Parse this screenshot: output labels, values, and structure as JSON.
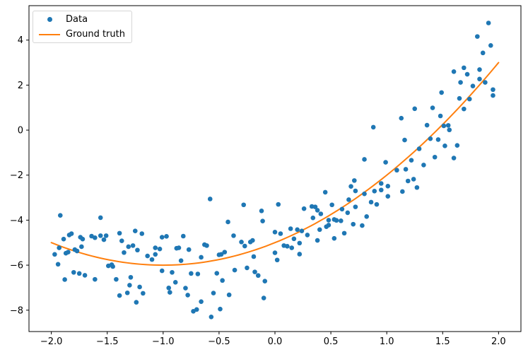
{
  "chart_data": {
    "type": "scatter",
    "title": "",
    "xlabel": "",
    "ylabel": "",
    "grid": false,
    "legend_position": "upper left",
    "xlim": [
      -2.2,
      2.2
    ],
    "ylim": [
      -8.95,
      5.53
    ],
    "x_ticks": {
      "values": [
        -2.0,
        -1.5,
        -1.0,
        -0.5,
        0.0,
        0.5,
        1.0,
        1.5,
        2.0
      ],
      "labels": [
        "−2.0",
        "−1.5",
        "−1.0",
        "−0.5",
        "0.0",
        "0.5",
        "1.0",
        "1.5",
        "2.0"
      ]
    },
    "y_ticks": {
      "values": [
        -8,
        -6,
        -4,
        -2,
        0,
        2,
        4
      ],
      "labels": [
        "−8",
        "−6",
        "−4",
        "−2",
        "0",
        "2",
        "4"
      ]
    },
    "series": [
      {
        "name": "Data",
        "type": "scatter",
        "marker": "circle",
        "color": "#1f77b4",
        "points": [
          [
            -1.97,
            -5.52
          ],
          [
            -1.94,
            -5.96
          ],
          [
            -1.93,
            -5.23
          ],
          [
            -1.92,
            -3.79
          ],
          [
            -1.89,
            -4.84
          ],
          [
            -1.88,
            -6.64
          ],
          [
            -1.87,
            -5.47
          ],
          [
            -1.85,
            -5.42
          ],
          [
            -1.84,
            -4.66
          ],
          [
            -1.82,
            -4.6
          ],
          [
            -1.8,
            -6.32
          ],
          [
            -1.79,
            -5.31
          ],
          [
            -1.77,
            -5.37
          ],
          [
            -1.75,
            -6.37
          ],
          [
            -1.74,
            -4.76
          ],
          [
            -1.73,
            -5.18
          ],
          [
            -1.72,
            -4.84
          ],
          [
            -1.7,
            -6.45
          ],
          [
            -1.64,
            -4.71
          ],
          [
            -1.61,
            -4.78
          ],
          [
            -1.61,
            -6.63
          ],
          [
            -1.56,
            -3.89
          ],
          [
            -1.56,
            -4.69
          ],
          [
            -1.53,
            -4.87
          ],
          [
            -1.51,
            -4.69
          ],
          [
            -1.49,
            -6.03
          ],
          [
            -1.46,
            -5.98
          ],
          [
            -1.45,
            -6.06
          ],
          [
            -1.42,
            -6.63
          ],
          [
            -1.39,
            -4.58
          ],
          [
            -1.39,
            -7.35
          ],
          [
            -1.37,
            -4.92
          ],
          [
            -1.35,
            -5.44
          ],
          [
            -1.32,
            -7.23
          ],
          [
            -1.31,
            -5.18
          ],
          [
            -1.3,
            -6.89
          ],
          [
            -1.29,
            -6.54
          ],
          [
            -1.27,
            -5.13
          ],
          [
            -1.25,
            -4.48
          ],
          [
            -1.24,
            -7.65
          ],
          [
            -1.23,
            -5.33
          ],
          [
            -1.21,
            -6.97
          ],
          [
            -1.19,
            -4.6
          ],
          [
            -1.18,
            -7.25
          ],
          [
            -1.14,
            -5.59
          ],
          [
            -1.1,
            -5.75
          ],
          [
            -1.07,
            -5.23
          ],
          [
            -1.07,
            -5.52
          ],
          [
            -1.03,
            -5.28
          ],
          [
            -1.01,
            -4.76
          ],
          [
            -1.01,
            -6.25
          ],
          [
            -0.97,
            -4.72
          ],
          [
            -0.95,
            -7.01
          ],
          [
            -0.94,
            -7.21
          ],
          [
            -0.92,
            -6.32
          ],
          [
            -0.89,
            -6.76
          ],
          [
            -0.88,
            -5.25
          ],
          [
            -0.86,
            -5.23
          ],
          [
            -0.84,
            -5.8
          ],
          [
            -0.82,
            -4.71
          ],
          [
            -0.8,
            -7.02
          ],
          [
            -0.78,
            -7.33
          ],
          [
            -0.77,
            -5.31
          ],
          [
            -0.75,
            -6.37
          ],
          [
            -0.73,
            -8.05
          ],
          [
            -0.7,
            -7.97
          ],
          [
            -0.69,
            -6.39
          ],
          [
            -0.66,
            -5.65
          ],
          [
            -0.66,
            -7.62
          ],
          [
            -0.63,
            -5.09
          ],
          [
            -0.61,
            -5.13
          ],
          [
            -0.58,
            -3.06
          ],
          [
            -0.57,
            -8.3
          ],
          [
            -0.55,
            -7.24
          ],
          [
            -0.52,
            -6.36
          ],
          [
            -0.5,
            -5.54
          ],
          [
            -0.49,
            -7.95
          ],
          [
            -0.48,
            -5.52
          ],
          [
            -0.47,
            -6.68
          ],
          [
            -0.45,
            -5.42
          ],
          [
            -0.42,
            -4.08
          ],
          [
            -0.41,
            -7.32
          ],
          [
            -0.37,
            -4.69
          ],
          [
            -0.36,
            -6.22
          ],
          [
            -0.3,
            -4.97
          ],
          [
            -0.28,
            -3.32
          ],
          [
            -0.27,
            -5.15
          ],
          [
            -0.25,
            -6.12
          ],
          [
            -0.22,
            -4.97
          ],
          [
            -0.2,
            -4.9
          ],
          [
            -0.19,
            -5.62
          ],
          [
            -0.18,
            -6.3
          ],
          [
            -0.15,
            -6.46
          ],
          [
            -0.12,
            -3.59
          ],
          [
            -0.11,
            -4.04
          ],
          [
            -0.1,
            -7.46
          ],
          [
            -0.09,
            -6.71
          ],
          [
            0.0,
            -4.53
          ],
          [
            0.0,
            -5.45
          ],
          [
            0.02,
            -5.77
          ],
          [
            0.03,
            -3.3
          ],
          [
            0.05,
            -4.6
          ],
          [
            0.08,
            -5.13
          ],
          [
            0.11,
            -5.16
          ],
          [
            0.14,
            -4.38
          ],
          [
            0.15,
            -5.23
          ],
          [
            0.17,
            -4.83
          ],
          [
            0.2,
            -4.42
          ],
          [
            0.22,
            -5.02
          ],
          [
            0.22,
            -5.51
          ],
          [
            0.24,
            -4.48
          ],
          [
            0.26,
            -3.49
          ],
          [
            0.29,
            -4.66
          ],
          [
            0.33,
            -3.39
          ],
          [
            0.34,
            -3.9
          ],
          [
            0.36,
            -3.41
          ],
          [
            0.38,
            -3.56
          ],
          [
            0.38,
            -4.9
          ],
          [
            0.4,
            -4.42
          ],
          [
            0.41,
            -3.72
          ],
          [
            0.45,
            -2.76
          ],
          [
            0.46,
            -4.29
          ],
          [
            0.48,
            -4.0
          ],
          [
            0.48,
            -4.22
          ],
          [
            0.51,
            -3.32
          ],
          [
            0.53,
            -3.97
          ],
          [
            0.53,
            -4.81
          ],
          [
            0.55,
            -4.01
          ],
          [
            0.59,
            -4.03
          ],
          [
            0.6,
            -3.51
          ],
          [
            0.62,
            -4.58
          ],
          [
            0.65,
            -3.67
          ],
          [
            0.66,
            -3.09
          ],
          [
            0.68,
            -2.5
          ],
          [
            0.7,
            -4.18
          ],
          [
            0.71,
            -2.24
          ],
          [
            0.72,
            -2.7
          ],
          [
            0.72,
            -3.41
          ],
          [
            0.78,
            -4.24
          ],
          [
            0.8,
            -1.3
          ],
          [
            0.8,
            -2.83
          ],
          [
            0.82,
            -3.84
          ],
          [
            0.86,
            -3.2
          ],
          [
            0.88,
            0.13
          ],
          [
            0.89,
            -2.71
          ],
          [
            0.91,
            -3.3
          ],
          [
            0.95,
            -2.37
          ],
          [
            0.95,
            -2.66
          ],
          [
            0.99,
            -1.43
          ],
          [
            1.01,
            -2.49
          ],
          [
            1.01,
            -2.94
          ],
          [
            1.09,
            -1.78
          ],
          [
            1.13,
            0.53
          ],
          [
            1.14,
            -2.73
          ],
          [
            1.16,
            -0.44
          ],
          [
            1.17,
            -1.74
          ],
          [
            1.19,
            -2.26
          ],
          [
            1.22,
            -1.34
          ],
          [
            1.24,
            -2.18
          ],
          [
            1.25,
            0.95
          ],
          [
            1.27,
            -2.55
          ],
          [
            1.29,
            -0.83
          ],
          [
            1.33,
            -1.55
          ],
          [
            1.36,
            0.22
          ],
          [
            1.39,
            -0.38
          ],
          [
            1.41,
            0.99
          ],
          [
            1.43,
            -1.2
          ],
          [
            1.46,
            -0.42
          ],
          [
            1.48,
            0.63
          ],
          [
            1.49,
            1.67
          ],
          [
            1.51,
            0.19
          ],
          [
            1.52,
            -0.7
          ],
          [
            1.55,
            0.21
          ],
          [
            1.56,
            0.01
          ],
          [
            1.6,
            -1.24
          ],
          [
            1.6,
            2.6
          ],
          [
            1.63,
            -0.68
          ],
          [
            1.65,
            1.41
          ],
          [
            1.66,
            2.12
          ],
          [
            1.69,
            0.94
          ],
          [
            1.69,
            2.77
          ],
          [
            1.72,
            2.48
          ],
          [
            1.74,
            1.38
          ],
          [
            1.77,
            1.96
          ],
          [
            1.81,
            4.16
          ],
          [
            1.83,
            2.27
          ],
          [
            1.83,
            2.69
          ],
          [
            1.86,
            3.43
          ],
          [
            1.88,
            2.12
          ],
          [
            1.91,
            4.76
          ],
          [
            1.93,
            3.76
          ],
          [
            1.95,
            1.54
          ],
          [
            1.95,
            1.8
          ]
        ]
      },
      {
        "name": "Ground truth",
        "type": "line",
        "color": "#ff7f0e",
        "formula": "y = x^2 + 2x - 5",
        "poly_coefficients": [
          1,
          2,
          -5
        ],
        "x_range": [
          -2,
          2
        ]
      }
    ]
  },
  "legend": {
    "items": [
      {
        "label": "Data",
        "marker": "dot",
        "color": "#1f77b4"
      },
      {
        "label": "Ground truth",
        "marker": "line",
        "color": "#ff7f0e"
      }
    ]
  },
  "colors": {
    "data_points": "#1f77b4",
    "ground_truth": "#ff7f0e",
    "spine": "#000000",
    "tick_label": "#000000",
    "background": "#ffffff",
    "legend_border": "#d5d5d5"
  }
}
